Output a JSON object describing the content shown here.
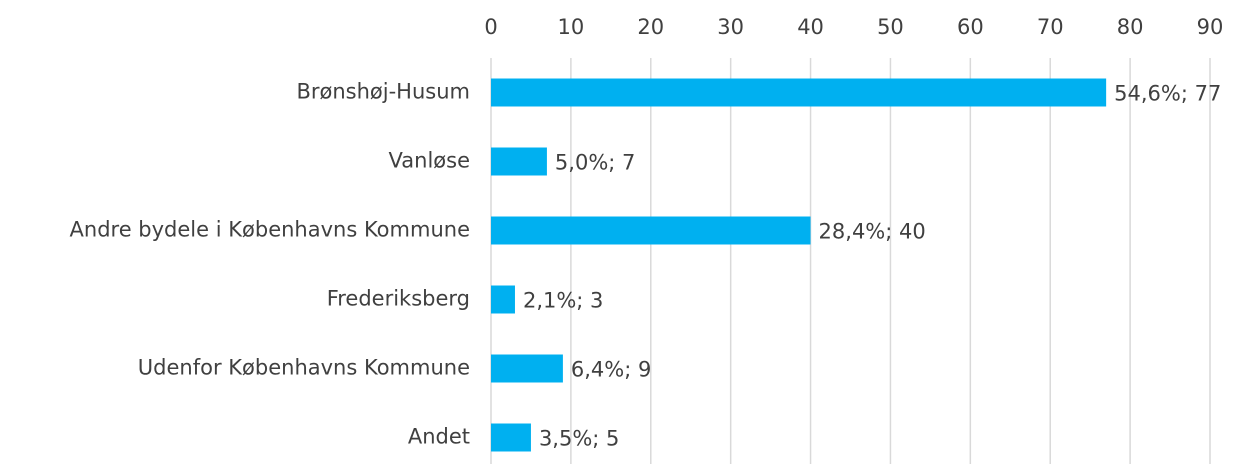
{
  "chart_data": {
    "type": "bar",
    "orientation": "horizontal",
    "categories": [
      "Brønshøj-Husum",
      "Vanløse",
      "Andre bydele i Københavns Kommune",
      "Frederiksberg",
      "Udenfor Københavns Kommune",
      "Andet"
    ],
    "values": [
      77,
      7,
      40,
      3,
      9,
      5
    ],
    "value_labels": [
      "54,6%; 77",
      "5,0%; 7",
      "28,4%; 40",
      "2,1%; 3",
      "6,4%; 9",
      "3,5%; 5"
    ],
    "color": "#00b0f0",
    "xlim": [
      0,
      90
    ],
    "xticks": [
      0,
      10,
      20,
      30,
      40,
      50,
      60,
      70,
      80,
      90
    ],
    "grid": true
  }
}
